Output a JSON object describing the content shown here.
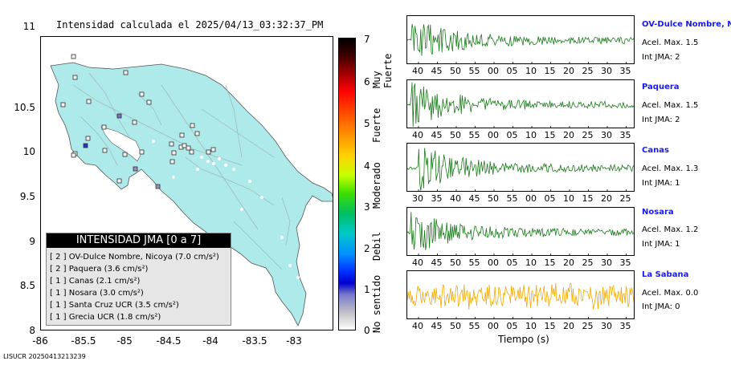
{
  "map": {
    "title": "Intensidad calculada el 2025/04/13_03:32:37_PM",
    "lat_ticks": [
      "11",
      "10.5",
      "10",
      "9.5",
      "9",
      "8.5",
      "8"
    ],
    "lon_ticks": [
      "-86",
      "-85.5",
      "-85",
      "-84.5",
      "-84",
      "-83.5",
      "-83"
    ],
    "land_color": "#aeeaea"
  },
  "colorbar": {
    "ticks": [
      "7",
      "6",
      "5",
      "4",
      "3",
      "2",
      "1",
      "0"
    ],
    "words": [
      "Muy Fuerte",
      "Fuerte",
      "Moderado",
      "Debil",
      "No sentido"
    ]
  },
  "legend": {
    "title": "INTENSIDAD JMA [0 a 7]",
    "items": [
      {
        "level": "[ 2 ]",
        "text": "OV-Dulce Nombre, Nicoya (7.0 cm/s²)"
      },
      {
        "level": "[ 2 ]",
        "text": "Paquera (3.6 cm/s²)"
      },
      {
        "level": "[ 1 ]",
        "text": "Canas (2.1 cm/s²)"
      },
      {
        "level": "[ 1 ]",
        "text": "Nosara (3.0 cm/s²)"
      },
      {
        "level": "[ 1 ]",
        "text": "Santa Cruz UCR (3.5 cm/s²)"
      },
      {
        "level": "[ 1 ]",
        "text": "Grecia UCR (1.8 cm/s²)"
      }
    ]
  },
  "waveforms": [
    {
      "name": "OV-Dulce Nombre, Nicoya",
      "acel": "Acel. Max. 1.5",
      "jma": "Int JMA: 2",
      "color": "#1a7a1a",
      "ticks": [
        "40",
        "45",
        "50",
        "55",
        "00",
        "05",
        "10",
        "15",
        "20",
        "25",
        "30",
        "35"
      ]
    },
    {
      "name": "Paquera",
      "acel": "Acel. Max. 1.5",
      "jma": "Int JMA: 2",
      "color": "#1a7a1a",
      "ticks": [
        "40",
        "45",
        "50",
        "55",
        "00",
        "05",
        "10",
        "15",
        "20",
        "25",
        "30",
        "35"
      ]
    },
    {
      "name": "Canas",
      "acel": "Acel. Max. 1.3",
      "jma": "Int JMA: 1",
      "color": "#1a7a1a",
      "ticks": [
        "30",
        "35",
        "40",
        "45",
        "50",
        "55",
        "00",
        "05",
        "10",
        "15",
        "20",
        "25"
      ]
    },
    {
      "name": "Nosara",
      "acel": "Acel. Max. 1.2",
      "jma": "Int JMA: 1",
      "color": "#1a7a1a",
      "ticks": [
        "40",
        "45",
        "50",
        "55",
        "00",
        "05",
        "10",
        "15",
        "20",
        "25",
        "30",
        "35"
      ]
    },
    {
      "name": "La Sabana",
      "acel": "Acel. Max. 0.0",
      "jma": "Int JMA: 0",
      "color": "#f2a900",
      "ticks": [
        "40",
        "45",
        "50",
        "55",
        "00",
        "05",
        "10",
        "15",
        "20",
        "25",
        "30",
        "35"
      ]
    }
  ],
  "time_axis_label": "Tiempo (s)",
  "footer": "LISUCR 20250413213239"
}
